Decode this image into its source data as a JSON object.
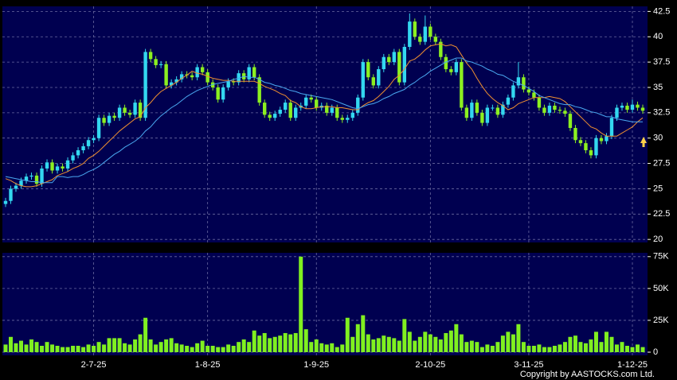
{
  "chart_data": {
    "type": "candlestick",
    "categories": [
      null,
      null,
      null,
      null,
      null,
      null,
      null,
      null,
      null,
      null,
      null,
      null,
      null,
      null,
      null,
      null,
      null,
      "2-7-25",
      null,
      null,
      null,
      null,
      null,
      null,
      null,
      null,
      null,
      null,
      null,
      null,
      null,
      null,
      null,
      null,
      null,
      null,
      null,
      null,
      null,
      "1-8-25",
      null,
      null,
      null,
      null,
      null,
      null,
      null,
      null,
      null,
      null,
      null,
      null,
      null,
      null,
      null,
      null,
      null,
      null,
      null,
      null,
      "1-9-25",
      null,
      null,
      null,
      null,
      null,
      null,
      null,
      null,
      null,
      null,
      null,
      null,
      null,
      null,
      null,
      null,
      null,
      null,
      null,
      null,
      null,
      "2-10-25",
      null,
      null,
      null,
      null,
      null,
      null,
      null,
      null,
      null,
      null,
      null,
      null,
      null,
      null,
      null,
      null,
      null,
      null,
      "3-11-25",
      null,
      null,
      null,
      null,
      null,
      null,
      null,
      null,
      null,
      null,
      null,
      null,
      null,
      null,
      null,
      null,
      null,
      null,
      null,
      "1-12-25",
      null,
      null
    ],
    "open": [
      23.5,
      23.8,
      25.0,
      25.3,
      25.8,
      26.2,
      26.3,
      25.5,
      27.0,
      27.6,
      26.8,
      27.2,
      27.0,
      27.8,
      28.3,
      28.8,
      29.2,
      29.8,
      30.0,
      32.0,
      31.5,
      32.2,
      32.0,
      33.0,
      32.5,
      32.3,
      33.5,
      32.0,
      38.5,
      37.8,
      37.2,
      37.3,
      35.2,
      35.5,
      35.8,
      36.3,
      36.2,
      36.0,
      37.0,
      36.5,
      35.5,
      35.0,
      33.8,
      35.0,
      35.6,
      35.5,
      36.4,
      35.8,
      37.0,
      36.0,
      33.5,
      32.3,
      32.0,
      32.4,
      32.8,
      33.5,
      32.0,
      33.0,
      33.2,
      34.0,
      33.8,
      33.0,
      33.2,
      32.5,
      33.0,
      32.0,
      31.8,
      32.0,
      32.5,
      34.0,
      37.5,
      36.0,
      35.2,
      36.8,
      38.0,
      37.5,
      38.5,
      35.5,
      39.0,
      41.5,
      40.0,
      39.5,
      41.0,
      40.0,
      39.5,
      38.0,
      36.8,
      36.5,
      37.5,
      33.0,
      32.0,
      33.5,
      32.5,
      31.5,
      33.0,
      33.0,
      32.3,
      33.3,
      34.0,
      35.2,
      36.0,
      34.8,
      34.5,
      34.0,
      33.0,
      32.5,
      33.2,
      32.8,
      32.7,
      32.4,
      31.0,
      29.8,
      29.5,
      28.8,
      28.3,
      30.0,
      29.7,
      30.2,
      32.0,
      33.0,
      33.2,
      32.8,
      33.3,
      33.0
    ],
    "high": [
      24.1,
      25.3,
      25.6,
      26.1,
      26.5,
      26.6,
      26.6,
      27.3,
      27.9,
      27.9,
      27.5,
      27.5,
      28.1,
      28.6,
      29.1,
      29.5,
      30.1,
      30.3,
      32.3,
      32.3,
      32.5,
      32.5,
      33.3,
      33.3,
      32.8,
      33.8,
      33.8,
      38.8,
      38.8,
      38.1,
      37.6,
      37.6,
      35.8,
      36.1,
      36.6,
      36.6,
      36.5,
      37.3,
      37.3,
      36.8,
      35.8,
      35.3,
      35.3,
      35.9,
      35.9,
      36.7,
      36.7,
      37.3,
      37.3,
      36.3,
      33.8,
      32.6,
      32.7,
      33.1,
      33.8,
      33.8,
      33.3,
      33.5,
      34.3,
      34.3,
      34.1,
      33.5,
      33.5,
      33.3,
      33.3,
      32.3,
      32.3,
      32.8,
      34.3,
      37.8,
      37.8,
      36.3,
      37.1,
      38.3,
      38.3,
      38.8,
      38.8,
      39.3,
      42.3,
      41.8,
      40.3,
      42.1,
      41.3,
      40.3,
      39.8,
      38.3,
      37.1,
      37.8,
      37.8,
      33.3,
      33.8,
      33.8,
      32.8,
      33.3,
      33.3,
      33.3,
      33.6,
      34.3,
      35.5,
      37.5,
      36.3,
      35.1,
      34.8,
      34.3,
      33.3,
      33.5,
      33.5,
      33.1,
      33.0,
      32.7,
      31.3,
      30.1,
      29.8,
      29.1,
      30.3,
      30.3,
      30.5,
      32.3,
      33.3,
      33.5,
      33.5,
      33.8,
      33.6,
      33.3
    ],
    "low": [
      23.2,
      23.5,
      24.7,
      25.0,
      25.5,
      25.9,
      25.2,
      25.2,
      26.7,
      26.5,
      26.5,
      26.7,
      26.7,
      27.5,
      28.0,
      28.5,
      28.9,
      29.5,
      29.7,
      31.2,
      31.2,
      31.7,
      31.7,
      32.2,
      32.0,
      32.0,
      31.7,
      31.7,
      37.5,
      36.9,
      36.9,
      34.9,
      34.9,
      35.2,
      35.5,
      35.9,
      35.7,
      35.7,
      36.2,
      35.2,
      34.7,
      33.5,
      33.5,
      34.7,
      35.2,
      35.2,
      35.5,
      35.5,
      35.7,
      33.2,
      32.0,
      31.7,
      31.7,
      32.1,
      32.5,
      31.7,
      31.7,
      32.7,
      32.9,
      33.5,
      32.7,
      32.7,
      32.2,
      32.2,
      31.7,
      31.5,
      31.5,
      31.7,
      32.2,
      33.7,
      35.7,
      34.9,
      34.9,
      36.5,
      37.2,
      37.2,
      35.2,
      35.2,
      38.7,
      39.7,
      39.2,
      39.2,
      39.7,
      39.2,
      37.7,
      36.5,
      36.2,
      36.2,
      32.7,
      31.7,
      31.7,
      32.2,
      31.2,
      31.2,
      32.7,
      32.0,
      32.0,
      33.0,
      33.7,
      34.9,
      34.5,
      34.2,
      33.7,
      32.7,
      32.2,
      32.2,
      32.5,
      32.4,
      32.1,
      30.7,
      29.5,
      29.2,
      28.5,
      28.0,
      28.0,
      29.4,
      29.4,
      29.9,
      31.7,
      32.7,
      32.5,
      32.5,
      32.7,
      32.4
    ],
    "close": [
      23.8,
      25.0,
      25.3,
      25.8,
      26.2,
      26.3,
      25.5,
      27.0,
      27.6,
      26.8,
      27.2,
      27.0,
      27.8,
      28.3,
      28.8,
      29.2,
      29.8,
      30.0,
      32.0,
      31.5,
      32.2,
      32.0,
      33.0,
      32.5,
      32.3,
      33.5,
      32.0,
      38.5,
      37.8,
      37.2,
      37.3,
      35.2,
      35.5,
      35.8,
      36.3,
      36.2,
      36.0,
      37.0,
      36.5,
      35.5,
      35.0,
      33.8,
      35.0,
      35.6,
      35.5,
      36.4,
      35.8,
      37.0,
      36.0,
      33.5,
      32.3,
      32.0,
      32.4,
      32.8,
      33.5,
      32.0,
      33.0,
      33.2,
      34.0,
      33.8,
      33.0,
      33.2,
      32.5,
      33.0,
      32.0,
      31.8,
      32.0,
      32.5,
      34.0,
      37.5,
      36.0,
      35.2,
      36.8,
      38.0,
      37.5,
      38.5,
      35.5,
      39.0,
      41.5,
      40.0,
      39.5,
      41.0,
      40.0,
      39.5,
      38.0,
      36.8,
      36.5,
      37.5,
      33.0,
      32.0,
      33.5,
      32.5,
      31.5,
      33.0,
      33.0,
      32.3,
      33.3,
      34.0,
      35.2,
      36.0,
      34.8,
      34.5,
      34.0,
      33.0,
      32.5,
      33.2,
      32.8,
      32.7,
      32.4,
      31.0,
      29.8,
      29.5,
      28.8,
      28.3,
      30.0,
      29.7,
      30.2,
      32.0,
      33.0,
      33.2,
      32.8,
      33.3,
      33.0,
      32.7
    ],
    "up_color": "#33d8f0",
    "down_color": "#8cf020",
    "series": [
      {
        "color": "#f09030",
        "values": [
          26.0,
          25.8,
          25.5,
          25.3,
          25.2,
          25.2,
          25.3,
          25.5,
          25.7,
          25.9,
          26.3,
          26.5,
          26.7,
          27.0,
          27.2,
          27.5,
          28.0,
          28.3,
          28.7,
          29.2,
          29.7,
          30.2,
          30.7,
          31.1,
          31.5,
          31.9,
          32.1,
          33.0,
          33.5,
          34.1,
          34.6,
          34.9,
          35.2,
          35.5,
          35.9,
          36.2,
          36.6,
          36.4,
          36.3,
          36.1,
          35.9,
          35.8,
          35.7,
          35.7,
          35.6,
          35.6,
          35.6,
          35.6,
          35.6,
          35.4,
          35.1,
          34.9,
          34.7,
          34.4,
          34.2,
          33.7,
          33.5,
          33.1,
          32.9,
          32.9,
          33.0,
          33.1,
          33.1,
          33.1,
          33.0,
          33.0,
          32.9,
          32.8,
          32.8,
          33.2,
          33.5,
          33.7,
          34.1,
          34.6,
          35.1,
          35.8,
          36.2,
          36.8,
          37.6,
          37.8,
          38.2,
          38.7,
          39.1,
          39.2,
          39.3,
          39.1,
          39.2,
          39.0,
          38.2,
          37.4,
          36.8,
          35.9,
          35.1,
          34.4,
          33.9,
          33.5,
          33.2,
          32.8,
          33.0,
          33.4,
          33.6,
          33.8,
          34.0,
          34.0,
          34.0,
          34.1,
          34.0,
          33.9,
          33.6,
          33.1,
          32.6,
          32.1,
          31.6,
          31.1,
          30.9,
          30.5,
          30.2,
          30.2,
          30.2,
          30.5,
          30.8,
          31.1,
          31.6,
          32.0
        ]
      },
      {
        "color": "#4aa8f0",
        "values": [
          26.2,
          26.1,
          26.0,
          25.9,
          25.8,
          25.7,
          25.7,
          25.6,
          25.6,
          25.6,
          26.2,
          26.2,
          26.1,
          26.2,
          26.2,
          26.4,
          26.7,
          26.9,
          27.2,
          27.6,
          28.0,
          28.4,
          28.7,
          29.1,
          29.4,
          29.7,
          30.1,
          30.7,
          31.1,
          31.7,
          32.2,
          32.6,
          33.0,
          33.3,
          33.7,
          34.1,
          34.4,
          34.7,
          34.9,
          35.1,
          35.3,
          35.4,
          35.5,
          35.6,
          35.8,
          35.9,
          36.1,
          36.0,
          36.0,
          35.8,
          35.5,
          35.4,
          35.2,
          35.1,
          34.9,
          34.7,
          34.6,
          34.4,
          34.3,
          34.2,
          34.1,
          34.0,
          33.9,
          33.8,
          33.6,
          33.4,
          33.2,
          33.0,
          32.9,
          33.1,
          33.3,
          33.4,
          33.6,
          33.9,
          34.1,
          34.4,
          34.6,
          34.8,
          35.2,
          35.5,
          35.9,
          36.2,
          36.6,
          36.9,
          37.2,
          37.5,
          37.7,
          37.9,
          37.9,
          37.6,
          37.5,
          37.3,
          37.1,
          36.8,
          36.6,
          36.3,
          36.2,
          35.9,
          35.6,
          35.4,
          35.2,
          34.9,
          34.6,
          34.2,
          34.0,
          33.8,
          33.6,
          33.4,
          33.3,
          33.3,
          33.1,
          33.0,
          32.8,
          32.6,
          32.5,
          32.3,
          32.1,
          32.1,
          31.9,
          31.8,
          31.7,
          31.6,
          31.6,
          31.6
        ]
      }
    ],
    "ylim": [
      19.7,
      43
    ],
    "yticks": [
      20,
      22.5,
      25,
      27.5,
      30,
      32.5,
      35,
      37.5,
      40,
      42.5
    ],
    "grid": true,
    "volume": {
      "type": "bar",
      "color": "#80f020",
      "values": [
        6000,
        12000,
        7000,
        9000,
        6000,
        10000,
        8000,
        5000,
        8000,
        6000,
        5000,
        4000,
        4000,
        5000,
        5000,
        4000,
        6000,
        5000,
        8000,
        6000,
        11000,
        11000,
        11000,
        7000,
        6000,
        10000,
        14000,
        27000,
        10000,
        6000,
        8000,
        10000,
        11000,
        7000,
        6000,
        5000,
        4000,
        7000,
        9000,
        5000,
        5000,
        4000,
        4000,
        6000,
        5000,
        8000,
        10000,
        8000,
        17000,
        13000,
        15000,
        11000,
        12000,
        13000,
        15000,
        14000,
        15000,
        75000,
        18000,
        8000,
        10000,
        7000,
        6000,
        7000,
        4000,
        6000,
        27000,
        12000,
        22000,
        29000,
        14000,
        10000,
        11000,
        13000,
        12000,
        11000,
        9000,
        26000,
        16000,
        9000,
        12000,
        16000,
        14000,
        12000,
        10000,
        15000,
        17000,
        22000,
        14000,
        8000,
        9000,
        8000,
        4000,
        6000,
        5000,
        8000,
        13000,
        16000,
        14000,
        22000,
        8000,
        5000,
        5000,
        6000,
        4000,
        4000,
        5000,
        6000,
        8000,
        12000,
        13000,
        8000,
        7000,
        10000,
        16000,
        8000,
        16000,
        12000,
        6000,
        8000,
        5000,
        4000,
        6000,
        4000
      ],
      "ylim": [
        0,
        78000
      ],
      "yticks": [
        0,
        {
          "value": 25000,
          "label": "25K"
        },
        {
          "value": 50000,
          "label": "50K"
        },
        {
          "value": 75000,
          "label": "75K"
        }
      ]
    },
    "copyright": "Copyright by AASTOCKS.com Ltd."
  }
}
